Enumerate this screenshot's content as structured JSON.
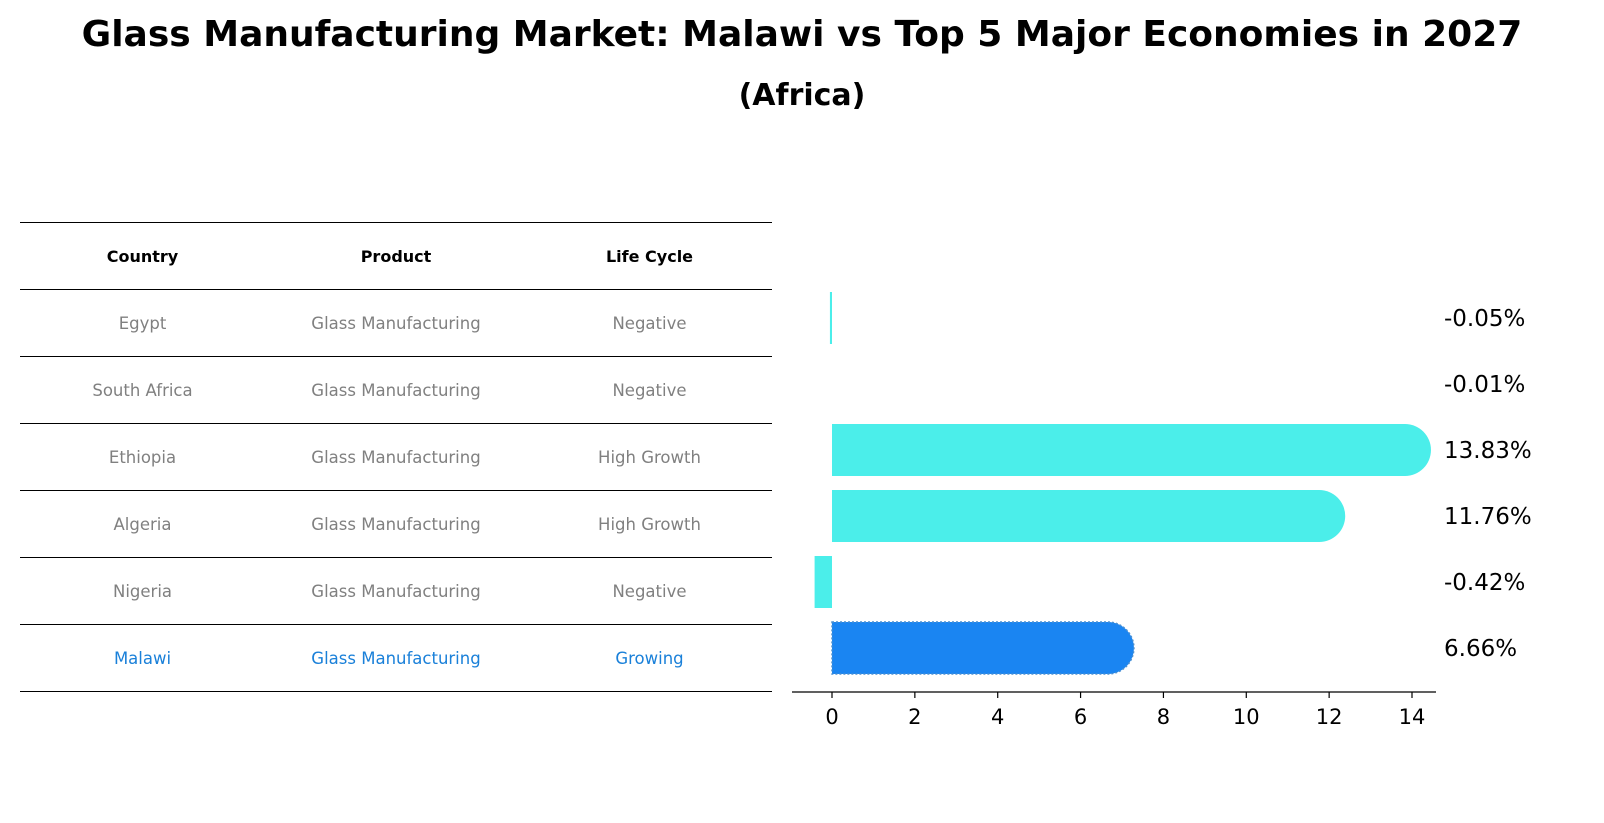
{
  "title": "Glass Manufacturing Market: Malawi vs Top 5 Major Economies in 2027",
  "subtitle": "(Africa)",
  "table": {
    "headers": [
      "Country",
      "Product",
      "Life Cycle"
    ],
    "rows": [
      {
        "country": "Egypt",
        "product": "Glass Manufacturing",
        "life_cycle": "Negative"
      },
      {
        "country": "South Africa",
        "product": "Glass Manufacturing",
        "life_cycle": "Negative"
      },
      {
        "country": "Ethiopia",
        "product": "Glass Manufacturing",
        "life_cycle": "High Growth"
      },
      {
        "country": "Algeria",
        "product": "Glass Manufacturing",
        "life_cycle": "High Growth"
      },
      {
        "country": "Nigeria",
        "product": "Glass Manufacturing",
        "life_cycle": "Negative"
      },
      {
        "country": "Malawi",
        "product": "Glass Manufacturing",
        "life_cycle": "Growing"
      }
    ]
  },
  "chart_data": {
    "type": "bar",
    "orientation": "horizontal",
    "categories": [
      "Egypt",
      "South Africa",
      "Ethiopia",
      "Algeria",
      "Nigeria",
      "Malawi"
    ],
    "values": [
      -0.05,
      -0.01,
      13.83,
      11.76,
      -0.42,
      6.66
    ],
    "value_labels": [
      "-0.05%",
      "-0.01%",
      "13.83%",
      "11.76%",
      "-0.42%",
      "6.66%"
    ],
    "highlight": "Malawi",
    "xlim": [
      -1.15,
      14.6
    ],
    "xticks": [
      0,
      2,
      4,
      6,
      8,
      10,
      12,
      14
    ],
    "xlabel": "",
    "ylabel": "",
    "colors": {
      "default": "#4beeea",
      "highlight": "#1a85f2"
    }
  }
}
